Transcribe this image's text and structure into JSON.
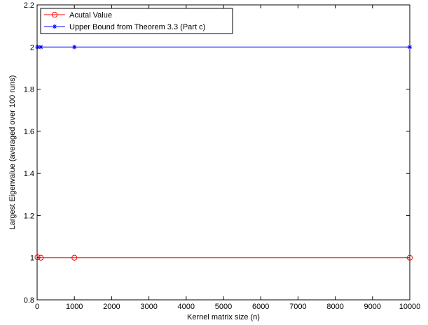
{
  "chart_data": {
    "type": "line",
    "title": "",
    "xlabel": "Kernel matrix size (n)",
    "ylabel": "Largest Eigenvalue (averaged over 100 runs)",
    "xlim": [
      0,
      10000
    ],
    "ylim": [
      0.8,
      2.2
    ],
    "xticks": [
      0,
      1000,
      2000,
      3000,
      4000,
      5000,
      6000,
      7000,
      8000,
      9000,
      10000
    ],
    "yticks": [
      0.8,
      1,
      1.2,
      1.4,
      1.6,
      1.8,
      2,
      2.2
    ],
    "xtick_labels": [
      "0",
      "1000",
      "2000",
      "3000",
      "4000",
      "5000",
      "6000",
      "7000",
      "8000",
      "9000",
      "10000"
    ],
    "ytick_labels": [
      "0.8",
      "1",
      "1.2",
      "1.4",
      "1.6",
      "1.8",
      "2",
      "2.2"
    ],
    "grid": false,
    "legend_position": "top-left",
    "series": [
      {
        "name": "Acutal Value",
        "color": "#ff0000",
        "marker": "circle",
        "x": [
          10,
          100,
          1000,
          10000
        ],
        "y": [
          1.002,
          1.0,
          1.0,
          1.0
        ]
      },
      {
        "name": "Upper Bound from Theorem 3.3 (Part c)",
        "color": "#0000ff",
        "marker": "asterisk",
        "x": [
          10,
          100,
          1000,
          10000
        ],
        "y": [
          2,
          2,
          2,
          2
        ]
      }
    ]
  }
}
